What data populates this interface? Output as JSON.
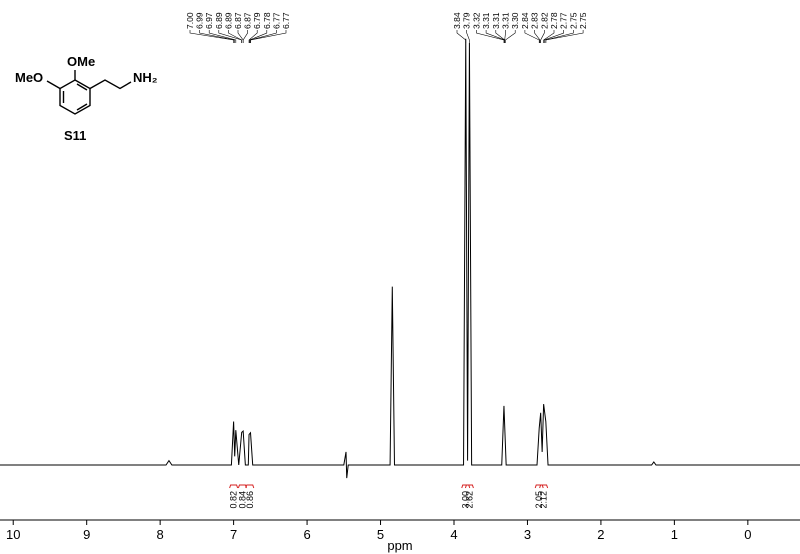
{
  "chart_data": {
    "type": "line",
    "x_label": "ppm",
    "xlim": [
      10.18,
      -0.71
    ],
    "ylim": [
      0,
      100
    ],
    "xticks": [
      10,
      9,
      8,
      7,
      6,
      5,
      4,
      3,
      2,
      1,
      0
    ],
    "color": "#000000",
    "x": [
      10.18,
      7.92,
      7.88,
      7.84,
      7.03,
      7.0,
      6.985,
      6.97,
      6.93,
      6.89,
      6.87,
      6.84,
      6.8,
      6.79,
      6.77,
      6.74,
      5.5,
      5.47,
      5.46,
      5.44,
      4.87,
      4.84,
      4.81,
      3.87,
      3.84,
      3.815,
      3.79,
      3.76,
      3.35,
      3.32,
      3.29,
      2.87,
      2.84,
      2.82,
      2.8,
      2.78,
      2.75,
      2.72,
      1.31,
      1.28,
      1.25,
      -0.71
    ],
    "values": [
      0,
      0,
      1,
      0,
      0,
      10,
      2,
      8,
      0,
      7.5,
      7.8,
      0,
      0,
      7,
      7.4,
      0,
      0,
      3,
      -3,
      0,
      0,
      41,
      0,
      0,
      98,
      1,
      97,
      0,
      0,
      13.6,
      0,
      0,
      8.5,
      12,
      3,
      14,
      10,
      0,
      0,
      0.7,
      0,
      0
    ],
    "peak_labels": [
      [
        "7.00",
        "6.99",
        "6.97",
        "6.89",
        "6.89",
        "6.87",
        "6.87",
        "6.79",
        "6.78",
        "6.77",
        "6.77"
      ],
      [
        "3.84",
        "3.79",
        "3.32",
        "3.31",
        "3.31",
        "3.31",
        "3.30",
        "2.84",
        "2.83",
        "2.82",
        "2.78",
        "2.77",
        "2.75",
        "2.75"
      ]
    ],
    "integral_color": "#d62020",
    "integrals": {
      "x": [
        7.0,
        6.88,
        6.78,
        3.84,
        3.79,
        2.84,
        2.78
      ],
      "values": [
        0.82,
        0.84,
        0.86,
        3.0,
        2.62,
        2.05,
        2.12
      ],
      "value_labels": [
        "0.82",
        "0.84",
        "0.86",
        "3.00",
        "2.62",
        "2.05",
        "2.12"
      ]
    }
  },
  "structure": {
    "labels": [
      "OMe",
      "MeO",
      "NH₂"
    ],
    "compound": "S11"
  }
}
